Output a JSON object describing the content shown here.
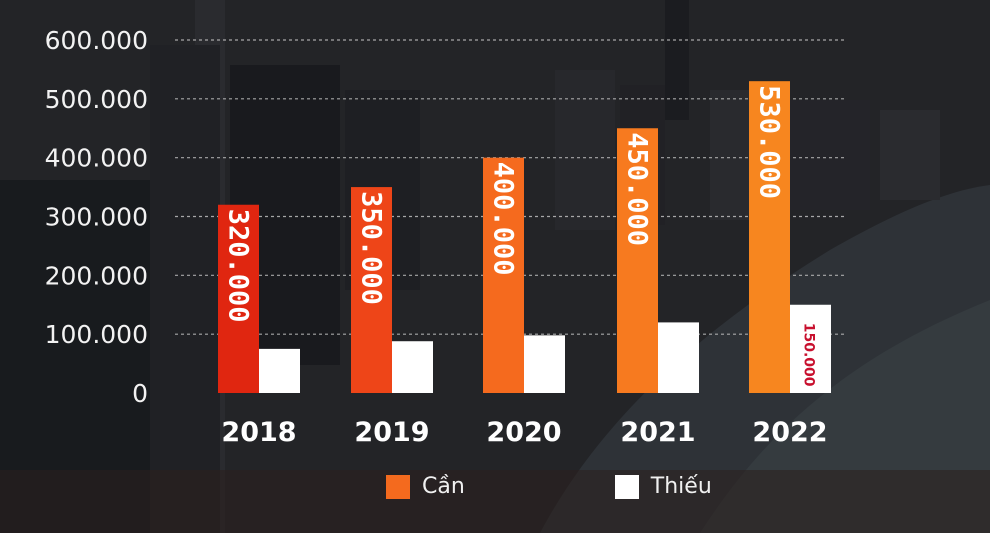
{
  "chart_data": {
    "type": "bar",
    "categories": [
      "2018",
      "2019",
      "2020",
      "2021",
      "2022"
    ],
    "series": [
      {
        "name": "Cần",
        "values": [
          320000,
          350000,
          400000,
          450000,
          530000
        ],
        "data_labels": [
          "320.000",
          "350.000",
          "400.000",
          "450.000",
          "530.000"
        ],
        "colors": [
          "#e02610",
          "#ee4518",
          "#f56a1e",
          "#f77a1f",
          "#f7861f"
        ]
      },
      {
        "name": "Thiếu",
        "values": [
          75000,
          88000,
          98000,
          120000,
          150000
        ],
        "data_labels": [
          "",
          "",
          "",
          "",
          "150.000"
        ],
        "color": "#ffffff"
      }
    ],
    "y_ticks": [
      "0",
      "100.000",
      "200.000",
      "300.000",
      "400.000",
      "500.000",
      "600.000"
    ],
    "ylim": [
      0,
      600000
    ],
    "grid": true,
    "legend_position": "bottom"
  },
  "legend": [
    {
      "label": "Cần",
      "color": "#f46a1e"
    },
    {
      "label": "Thiếu",
      "color": "#ffffff"
    }
  ]
}
